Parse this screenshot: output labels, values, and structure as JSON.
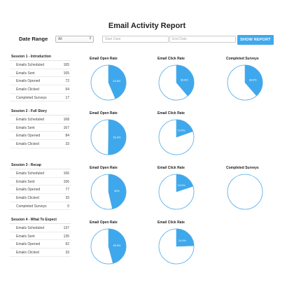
{
  "title": "Email Activity Report",
  "filters": {
    "date_range_label": "Date Range",
    "select_value": "All",
    "start_placeholder": "Start Date",
    "end_placeholder": "End Date",
    "button_label": "SHOW REPORT"
  },
  "colors": {
    "accent": "#3fa8ec",
    "ring": "#4ba9e8"
  },
  "sessions": [
    {
      "title": "Session 1 - Introduction",
      "rows": [
        {
          "label": "Emails Scheduled",
          "value": "165"
        },
        {
          "label": "Emails Sent",
          "value": "165"
        },
        {
          "label": "Emails Opened",
          "value": "72"
        },
        {
          "label": "Emails Clicked",
          "value": "64"
        },
        {
          "label": "Completed Surveys",
          "value": "17"
        }
      ]
    },
    {
      "title": "Session 2 - Full Story",
      "rows": [
        {
          "label": "Emails Scheduled",
          "value": "168"
        },
        {
          "label": "Emails Sent",
          "value": "167"
        },
        {
          "label": "Emails Opened",
          "value": "84"
        },
        {
          "label": "Emails Clicked",
          "value": "33"
        }
      ]
    },
    {
      "title": "Session 3 - Recap",
      "rows": [
        {
          "label": "Emails Scheduled",
          "value": "166"
        },
        {
          "label": "Emails Sent",
          "value": "166"
        },
        {
          "label": "Emails Opened",
          "value": "77"
        },
        {
          "label": "Emails Clicked",
          "value": "33"
        },
        {
          "label": "Completed Surveys",
          "value": "0"
        }
      ]
    },
    {
      "title": "Session 4 - What To Expect",
      "rows": [
        {
          "label": "Emails Scheduled",
          "value": "137"
        },
        {
          "label": "Emails Sent",
          "value": "135"
        },
        {
          "label": "Emails Opened",
          "value": "62"
        },
        {
          "label": "Emails Clicked",
          "value": "33"
        }
      ]
    }
  ],
  "chart_data": [
    {
      "type": "pie",
      "title": "Email Open Rate",
      "value": 43.6,
      "label": "43.6%"
    },
    {
      "type": "pie",
      "title": "Email Click Rate",
      "value": 38.8,
      "label": "38.8%"
    },
    {
      "type": "pie",
      "title": "Completed Surveys",
      "value": 38.6,
      "label": "38.6%"
    },
    {
      "type": "pie",
      "title": "Email Open Rate",
      "value": 50.3,
      "label": "50.3%"
    },
    {
      "type": "pie",
      "title": "Email Click Rate",
      "value": 19.6,
      "label": "19.6%"
    },
    {
      "type": "pie",
      "title": "Email Open Rate",
      "value": 46.4,
      "label": "46%"
    },
    {
      "type": "pie",
      "title": "Email Click Rate",
      "value": 19.9,
      "label": "19.9%"
    },
    {
      "type": "pie",
      "title": "Completed Surveys",
      "value": 0,
      "label": ""
    },
    {
      "type": "pie",
      "title": "Email Open Rate",
      "value": 45.9,
      "label": "45.9%"
    },
    {
      "type": "pie",
      "title": "Email Click Rate",
      "value": 24.4,
      "label": "24.4%"
    }
  ]
}
